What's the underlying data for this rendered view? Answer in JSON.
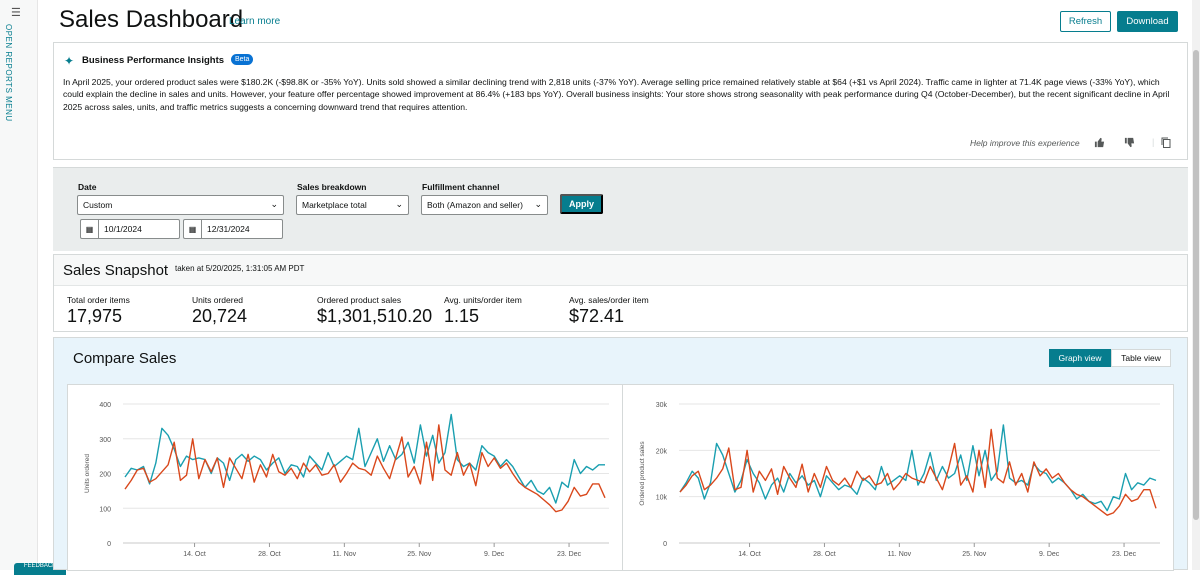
{
  "rail": {
    "menu_icon": "menu-icon",
    "label": "OPEN REPORTS MENU",
    "feedback": "FEEDBACK"
  },
  "header": {
    "title": "Sales Dashboard",
    "learn_more": "Learn more",
    "refresh": "Refresh",
    "download": "Download"
  },
  "insights": {
    "title": "Business Performance Insights",
    "badge": "Beta",
    "text": "In April 2025, your ordered product sales were $180.2K (-$98.8K or -35% YoY). Units sold showed a similar declining trend with 2,818 units (-37% YoY). Average selling price remained relatively stable at $64 (+$1 vs April 2024). Traffic came in lighter at 71.4K page views (-33% YoY), which could explain the decline in sales and units. However, your feature offer percentage showed improvement at 86.4% (+183 bps YoY). Overall business insights: Your store shows strong seasonality with peak performance during Q4 (October-December), but the recent significant decline in April 2025 across sales, units, and traffic metrics suggests a concerning downward trend that requires attention.",
    "help": "Help improve this experience"
  },
  "filters": {
    "date_label": "Date",
    "date_value": "Custom",
    "start_date": "10/1/2024",
    "end_date": "12/31/2024",
    "breakdown_label": "Sales breakdown",
    "breakdown_value": "Marketplace total",
    "channel_label": "Fulfillment channel",
    "channel_value": "Both (Amazon and seller)",
    "apply": "Apply"
  },
  "snapshot": {
    "title": "Sales Snapshot",
    "taken": "taken at 5/20/2025, 1:31:05 AM PDT",
    "metrics": [
      {
        "label": "Total order items",
        "value": "17,975"
      },
      {
        "label": "Units ordered",
        "value": "20,724"
      },
      {
        "label": "Ordered product sales",
        "value": "$1,301,510.20"
      },
      {
        "label": "Avg. units/order item",
        "value": "1.15"
      },
      {
        "label": "Avg. sales/order item",
        "value": "$72.41"
      }
    ]
  },
  "compare": {
    "title": "Compare Sales",
    "graph_view": "Graph view",
    "table_view": "Table view"
  },
  "colors": {
    "accent": "#067d8e",
    "teal_series": "#1a9fb0",
    "orange_series": "#d9481c"
  },
  "chart_data": [
    {
      "type": "line",
      "ylabel": "Units ordered",
      "yticks": [
        "0",
        "100",
        "200",
        "300",
        "400"
      ],
      "ylim": [
        0,
        400
      ],
      "xticks": [
        "14. Oct",
        "28. Oct",
        "11. Nov",
        "25. Nov",
        "9. Dec",
        "23. Dec"
      ],
      "grid": true,
      "series": [
        {
          "color": "#1a9fb0",
          "values": [
            190,
            215,
            210,
            220,
            170,
            230,
            330,
            310,
            270,
            220,
            250,
            240,
            245,
            240,
            200,
            245,
            230,
            180,
            240,
            255,
            235,
            250,
            240,
            210,
            230,
            245,
            200,
            225,
            220,
            190,
            250,
            230,
            210,
            260,
            220,
            235,
            250,
            240,
            330,
            220,
            260,
            300,
            235,
            280,
            240,
            255,
            290,
            230,
            340,
            250,
            310,
            230,
            260,
            370,
            240,
            220,
            230,
            210,
            280,
            260,
            250,
            220,
            240,
            220,
            190,
            160,
            180,
            150,
            140,
            160,
            115,
            175,
            160,
            240,
            200,
            220,
            210,
            225,
            225
          ]
        },
        {
          "color": "#d9481c",
          "values": [
            155,
            180,
            210,
            215,
            175,
            185,
            205,
            225,
            290,
            180,
            195,
            300,
            185,
            240,
            205,
            245,
            160,
            245,
            215,
            185,
            255,
            175,
            225,
            190,
            255,
            205,
            195,
            215,
            185,
            230,
            205,
            225,
            195,
            200,
            225,
            175,
            200,
            230,
            215,
            210,
            195,
            250,
            215,
            185,
            245,
            305,
            190,
            220,
            170,
            290,
            180,
            340,
            210,
            195,
            260,
            195,
            230,
            165,
            260,
            220,
            245,
            215,
            230,
            200,
            175,
            160,
            150,
            140,
            125,
            110,
            90,
            95,
            120,
            160,
            135,
            140,
            170,
            170,
            130
          ]
        }
      ]
    },
    {
      "type": "line",
      "ylabel": "Ordered product sales",
      "yticks": [
        "0",
        "10k",
        "20k",
        "30k"
      ],
      "ylim": [
        0,
        30000
      ],
      "xticks": [
        "14. Oct",
        "28. Oct",
        "11. Nov",
        "25. Nov",
        "9. Dec",
        "23. Dec"
      ],
      "grid": true,
      "series": [
        {
          "color": "#1a9fb0",
          "values": [
            11000,
            13000,
            15500,
            14000,
            9500,
            13000,
            21500,
            19000,
            15000,
            11000,
            13500,
            18000,
            15000,
            13000,
            9500,
            12500,
            14000,
            11000,
            15000,
            13000,
            14500,
            12500,
            13500,
            10000,
            14500,
            13000,
            11500,
            12500,
            12000,
            10500,
            14000,
            13000,
            11500,
            16500,
            12500,
            13500,
            14500,
            13500,
            20000,
            12500,
            15000,
            19500,
            13500,
            16500,
            14000,
            15000,
            19000,
            13500,
            21000,
            14500,
            20000,
            13500,
            15500,
            25500,
            14000,
            13000,
            13500,
            12500,
            17000,
            15500,
            15000,
            13000,
            14000,
            13000,
            11500,
            9500,
            10500,
            9000,
            8500,
            9000,
            7000,
            10000,
            9500,
            15000,
            11500,
            13000,
            12500,
            14000,
            13500
          ]
        },
        {
          "color": "#d9481c",
          "values": [
            11000,
            12500,
            14500,
            15500,
            11500,
            12500,
            14000,
            16000,
            20500,
            11500,
            12000,
            20000,
            11000,
            15500,
            13500,
            16000,
            10500,
            16500,
            14000,
            12000,
            17000,
            11000,
            15000,
            12000,
            16500,
            13500,
            12500,
            14000,
            12000,
            15500,
            13500,
            14500,
            12500,
            13000,
            15000,
            11500,
            13000,
            15000,
            14000,
            13500,
            13000,
            16500,
            14000,
            11500,
            16000,
            21500,
            12500,
            14500,
            11000,
            20000,
            12000,
            24500,
            14000,
            13000,
            17500,
            12500,
            15000,
            11000,
            17500,
            14500,
            16000,
            14000,
            15000,
            13000,
            11500,
            10500,
            10000,
            9000,
            8000,
            7000,
            6000,
            6500,
            8000,
            10500,
            9000,
            9500,
            11500,
            11500,
            7500
          ]
        }
      ]
    }
  ]
}
